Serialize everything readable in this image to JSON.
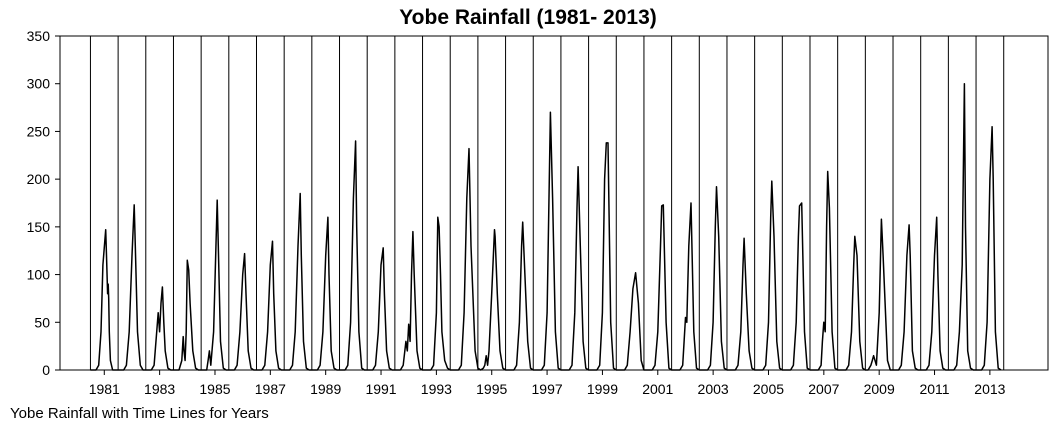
{
  "chart_data": {
    "type": "line",
    "title": "Yobe Rainfall (1981- 2013)",
    "xlabel": "",
    "ylabel": "",
    "caption": "Yobe Rainfall with Time Lines for Years",
    "ylim": [
      0,
      350
    ],
    "yticks": [
      0,
      50,
      100,
      150,
      200,
      250,
      300,
      350
    ],
    "xlim": [
      1979.9,
      2015.6
    ],
    "xtick_labels": [
      "1981",
      "1983",
      "1985",
      "1987",
      "1989",
      "1991",
      "1993",
      "1995",
      "1997",
      "1999",
      "2001",
      "2003",
      "2005",
      "2007",
      "2009",
      "2011",
      "2013"
    ],
    "year_lines": [
      1981,
      1982,
      1983,
      1984,
      1985,
      1986,
      1987,
      1988,
      1989,
      1990,
      1991,
      1992,
      1993,
      1994,
      1995,
      1996,
      1997,
      1998,
      1999,
      2000,
      2001,
      2002,
      2003,
      2004,
      2005,
      2006,
      2007,
      2008,
      2009,
      2010,
      2011,
      2012,
      2013,
      2014
    ],
    "grid": false,
    "legend": "none",
    "line_color": "#000000",
    "series": [
      {
        "x": [
          1981,
          1981.2,
          1981.3,
          1981.38,
          1981.45,
          1981.55,
          1981.58,
          1981.62,
          1981.64,
          1981.66,
          1981.68,
          1981.72,
          1981.8,
          1981.9,
          1982,
          1982.2,
          1982.3,
          1982.4,
          1982.5,
          1982.58,
          1982.62,
          1982.7,
          1982.8,
          1982.9,
          1983,
          1983.2,
          1983.3,
          1983.45,
          1983.5,
          1983.55,
          1983.6,
          1983.65,
          1983.7,
          1983.8,
          1983.9,
          1984,
          1984.2,
          1984.3,
          1984.35,
          1984.38,
          1984.42,
          1984.46,
          1984.5,
          1984.55,
          1984.6,
          1984.7,
          1984.8,
          1984.9,
          1985,
          1985.2,
          1985.25,
          1985.3,
          1985.35,
          1985.45,
          1985.58,
          1985.62,
          1985.7,
          1985.8,
          1985.9,
          1986,
          1986.2,
          1986.3,
          1986.4,
          1986.5,
          1986.57,
          1986.62,
          1986.7,
          1986.8,
          1986.9,
          1987,
          1987.2,
          1987.3,
          1987.4,
          1987.5,
          1987.58,
          1987.62,
          1987.7,
          1987.8,
          1987.9,
          1988,
          1988.2,
          1988.3,
          1988.4,
          1988.5,
          1988.58,
          1988.62,
          1988.7,
          1988.8,
          1988.9,
          1989,
          1989.2,
          1989.3,
          1989.4,
          1989.5,
          1989.58,
          1989.62,
          1989.7,
          1989.8,
          1989.9,
          1990,
          1990.2,
          1990.3,
          1990.4,
          1990.5,
          1990.58,
          1990.62,
          1990.7,
          1990.8,
          1990.9,
          1991,
          1991.2,
          1991.3,
          1991.4,
          1991.5,
          1991.58,
          1991.62,
          1991.7,
          1991.8,
          1991.9,
          1992,
          1992.2,
          1992.3,
          1992.4,
          1992.45,
          1992.5,
          1992.55,
          1992.6,
          1992.65,
          1992.7,
          1992.8,
          1992.9,
          1993,
          1993.2,
          1993.3,
          1993.4,
          1993.5,
          1993.55,
          1993.6,
          1993.65,
          1993.7,
          1993.8,
          1993.9,
          1994,
          1994.2,
          1994.3,
          1994.4,
          1994.5,
          1994.6,
          1994.68,
          1994.75,
          1994.9,
          1995,
          1995.1,
          1995.2,
          1995.25,
          1995.3,
          1995.35,
          1995.4,
          1995.5,
          1995.6,
          1995.62,
          1995.7,
          1995.8,
          1995.9,
          1996,
          1996.2,
          1996.3,
          1996.4,
          1996.5,
          1996.58,
          1996.62,
          1996.7,
          1996.8,
          1996.9,
          1997,
          1997.2,
          1997.3,
          1997.4,
          1997.5,
          1997.58,
          1997.62,
          1997.7,
          1997.8,
          1997.9,
          1998,
          1998.2,
          1998.3,
          1998.4,
          1998.5,
          1998.58,
          1998.62,
          1998.7,
          1998.8,
          1998.9,
          1999,
          1999.2,
          1999.3,
          1999.4,
          1999.5,
          1999.58,
          1999.64,
          1999.7,
          1999.8,
          1999.9,
          2000,
          2000.2,
          2000.3,
          2000.4,
          2000.5,
          2000.6,
          2000.7,
          2000.8,
          2000.9,
          2001,
          2001.2,
          2001.3,
          2001.4,
          2001.5,
          2001.6,
          2001.64,
          2001.7,
          2001.8,
          2001.9,
          2002,
          2002.2,
          2002.3,
          2002.4,
          2002.45,
          2002.5,
          2002.55,
          2002.62,
          2002.7,
          2002.8,
          2002.9,
          2003,
          2003.2,
          2003.3,
          2003.4,
          2003.5,
          2003.58,
          2003.62,
          2003.7,
          2003.8,
          2003.9,
          2004,
          2004.2,
          2004.3,
          2004.4,
          2004.5,
          2004.58,
          2004.62,
          2004.7,
          2004.8,
          2004.9,
          2005,
          2005.2,
          2005.3,
          2005.4,
          2005.5,
          2005.58,
          2005.62,
          2005.7,
          2005.8,
          2005.9,
          2006,
          2006.2,
          2006.3,
          2006.4,
          2006.5,
          2006.58,
          2006.62,
          2006.7,
          2006.8,
          2006.9,
          2007,
          2007.2,
          2007.3,
          2007.4,
          2007.45,
          2007.5,
          2007.55,
          2007.6,
          2007.64,
          2007.7,
          2007.8,
          2007.9,
          2008,
          2008.2,
          2008.3,
          2008.4,
          2008.5,
          2008.58,
          2008.62,
          2008.7,
          2008.8,
          2008.9,
          2009,
          2009.1,
          2009.2,
          2009.25,
          2009.3,
          2009.4,
          2009.5,
          2009.58,
          2009.64,
          2009.7,
          2009.8,
          2009.9,
          2010,
          2010.2,
          2010.3,
          2010.4,
          2010.5,
          2010.58,
          2010.62,
          2010.7,
          2010.8,
          2010.9,
          2011,
          2011.2,
          2011.3,
          2011.4,
          2011.5,
          2011.58,
          2011.62,
          2011.7,
          2011.8,
          2011.9,
          2012,
          2012.2,
          2012.3,
          2012.4,
          2012.5,
          2012.58,
          2012.62,
          2012.7,
          2012.8,
          2012.9,
          2013,
          2013.2,
          2013.3,
          2013.4,
          2013.5,
          2013.58,
          2013.62,
          2013.7,
          2013.8,
          2013.9
        ],
        "y": [
          0,
          0,
          5,
          40,
          110,
          147,
          120,
          80,
          90,
          75,
          40,
          10,
          0,
          0,
          0,
          0,
          5,
          40,
          120,
          173,
          130,
          40,
          5,
          0,
          0,
          0,
          5,
          60,
          40,
          70,
          87,
          50,
          20,
          2,
          0,
          0,
          0,
          10,
          35,
          20,
          10,
          40,
          115,
          105,
          70,
          20,
          2,
          0,
          0,
          0,
          10,
          20,
          5,
          40,
          178,
          130,
          30,
          2,
          0,
          0,
          0,
          5,
          40,
          100,
          122,
          80,
          20,
          2,
          0,
          0,
          0,
          5,
          40,
          110,
          135,
          80,
          20,
          2,
          0,
          0,
          0,
          5,
          40,
          130,
          185,
          120,
          30,
          2,
          0,
          0,
          0,
          5,
          40,
          120,
          160,
          100,
          20,
          2,
          0,
          0,
          0,
          5,
          50,
          180,
          240,
          150,
          40,
          2,
          0,
          0,
          0,
          5,
          40,
          110,
          128,
          80,
          20,
          2,
          0,
          0,
          0,
          5,
          30,
          20,
          48,
          30,
          100,
          145,
          100,
          20,
          2,
          0,
          0,
          0,
          5,
          60,
          160,
          150,
          100,
          40,
          10,
          2,
          0,
          0,
          0,
          5,
          60,
          180,
          232,
          130,
          20,
          2,
          0,
          2,
          5,
          15,
          5,
          20,
          80,
          147,
          140,
          80,
          20,
          2,
          0,
          0,
          0,
          5,
          50,
          130,
          155,
          100,
          30,
          2,
          0,
          0,
          0,
          5,
          60,
          200,
          270,
          180,
          40,
          2,
          0,
          0,
          0,
          5,
          60,
          170,
          213,
          130,
          30,
          2,
          0,
          0,
          0,
          5,
          60,
          200,
          238,
          238,
          50,
          2,
          0,
          0,
          0,
          5,
          40,
          85,
          102,
          70,
          10,
          0,
          0,
          0,
          5,
          40,
          130,
          172,
          173,
          50,
          2,
          0,
          0,
          0,
          5,
          30,
          55,
          50,
          130,
          175,
          40,
          2,
          0,
          0,
          0,
          5,
          50,
          150,
          192,
          140,
          30,
          2,
          0,
          0,
          0,
          5,
          40,
          110,
          138,
          80,
          20,
          2,
          0,
          0,
          0,
          5,
          50,
          160,
          198,
          140,
          30,
          2,
          0,
          0,
          0,
          5,
          50,
          140,
          172,
          175,
          40,
          2,
          0,
          0,
          0,
          5,
          30,
          50,
          40,
          150,
          208,
          170,
          40,
          2,
          0,
          0,
          0,
          5,
          40,
          110,
          140,
          120,
          30,
          2,
          0,
          0,
          5,
          10,
          15,
          5,
          60,
          158,
          120,
          80,
          10,
          0,
          0,
          0,
          5,
          40,
          120,
          152,
          120,
          20,
          2,
          0,
          0,
          0,
          5,
          40,
          120,
          160,
          100,
          20,
          2,
          0,
          0,
          0,
          5,
          40,
          110,
          300,
          150,
          20,
          2,
          0,
          0,
          0,
          5,
          50,
          200,
          255,
          200,
          40,
          2,
          0
        ]
      }
    ]
  }
}
